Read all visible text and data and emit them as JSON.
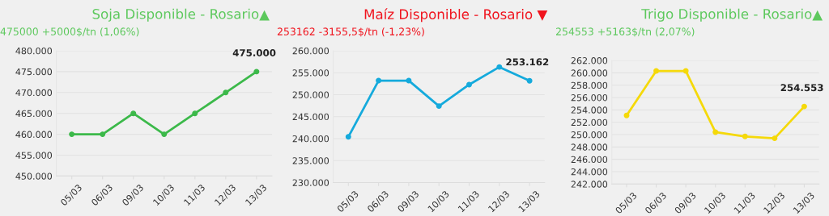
{
  "chart_data": [
    {
      "type": "line",
      "title": "Soja Disponible - Rosario▲",
      "subtitle": "475000 +5000$/tn (1,06%)",
      "categories": [
        "05/03",
        "06/03",
        "09/03",
        "10/03",
        "11/03",
        "12/03",
        "13/03"
      ],
      "series": [
        {
          "color": "#3cb94a",
          "values": [
            460000,
            460000,
            465000,
            460000,
            465000,
            470000,
            475000
          ]
        }
      ],
      "ylim": [
        450000,
        480000
      ],
      "yticks": [
        {
          "value": 450000,
          "label": "450.000"
        },
        {
          "value": 455000,
          "label": "455.000"
        },
        {
          "value": 460000,
          "label": "460.000"
        },
        {
          "value": 465000,
          "label": "465.000"
        },
        {
          "value": 470000,
          "label": "470.000"
        },
        {
          "value": 475000,
          "label": "475.000"
        },
        {
          "value": 480000,
          "label": "480.000"
        }
      ],
      "annotations": [
        {
          "text": "475.000",
          "x": "13/03",
          "y": 475000
        }
      ],
      "grid": "y",
      "marker": "circle",
      "line_style": "solid",
      "legend": false
    },
    {
      "type": "line",
      "title": "Maíz Disponible - Rosario ▼",
      "subtitle": "253162 -3155,5$/tn (-1,23%)",
      "categories": [
        "05/03",
        "06/03",
        "09/03",
        "10/03",
        "11/03",
        "12/03",
        "13/03"
      ],
      "series": [
        {
          "color": "#15aadc",
          "values": [
            240400,
            253200,
            253200,
            247400,
            252300,
            256300,
            253162
          ]
        }
      ],
      "ylim": [
        230000,
        260000
      ],
      "yticks": [
        {
          "value": 230000,
          "label": "230.000"
        },
        {
          "value": 235000,
          "label": "235.000"
        },
        {
          "value": 240000,
          "label": "240.000"
        },
        {
          "value": 245000,
          "label": "245.000"
        },
        {
          "value": 250000,
          "label": "250.000"
        },
        {
          "value": 255000,
          "label": "255.000"
        },
        {
          "value": 260000,
          "label": "260.000"
        }
      ],
      "annotations": [
        {
          "text": "253.162",
          "x": "13/03",
          "y": 253162
        }
      ],
      "grid": "y",
      "marker": "circle",
      "line_style": "solid",
      "legend": false
    },
    {
      "type": "line",
      "title": "Trigo Disponible - Rosario▲",
      "subtitle": "254553 +5163$/tn (2,07%)",
      "categories": [
        "05/03",
        "06/03",
        "09/03",
        "10/03",
        "11/03",
        "12/03",
        "13/03"
      ],
      "series": [
        {
          "color": "#f5d90a",
          "values": [
            253100,
            260300,
            260300,
            250400,
            249700,
            249400,
            254553
          ]
        }
      ],
      "ylim": [
        242000,
        262000
      ],
      "yticks": [
        {
          "value": 242000,
          "label": "242.000"
        },
        {
          "value": 244000,
          "label": "244.000"
        },
        {
          "value": 246000,
          "label": "246.000"
        },
        {
          "value": 248000,
          "label": "248.000"
        },
        {
          "value": 250000,
          "label": "250.000"
        },
        {
          "value": 252000,
          "label": "252.000"
        },
        {
          "value": 254000,
          "label": "254.000"
        },
        {
          "value": 256000,
          "label": "256.000"
        },
        {
          "value": 258000,
          "label": "258.000"
        },
        {
          "value": 260000,
          "label": "260.000"
        },
        {
          "value": 262000,
          "label": "262.000"
        }
      ],
      "annotations": [
        {
          "text": "254.553",
          "x": "13/03",
          "y": 254553
        }
      ],
      "grid": "y",
      "marker": "circle",
      "line_style": "solid",
      "legend": false
    }
  ]
}
